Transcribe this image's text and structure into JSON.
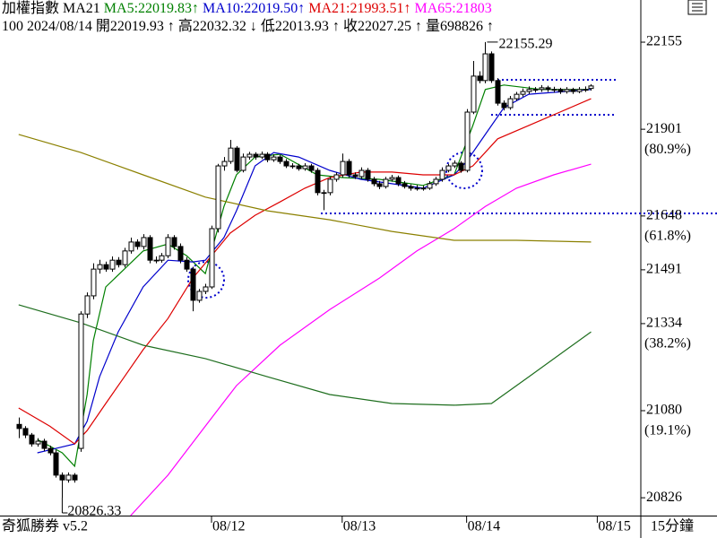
{
  "chart_data": {
    "type": "candlestick",
    "title": "加權指數",
    "indicator": "MA21",
    "info": [
      "100",
      "2024/08/14",
      "開22019.93",
      "↑",
      "高22032.32",
      "↓",
      "低22013.93",
      "↑",
      "收22027.25",
      "↑",
      "量698826",
      "↑"
    ],
    "brand": "奇狐勝券 v5.2",
    "timeframe": "15分鐘",
    "xlim": [
      -3,
      100
    ],
    "ylim": [
      20774,
      22278
    ],
    "yticks": [
      22155,
      21901,
      21648,
      21491,
      21334,
      21080,
      20826
    ],
    "fib_labels": [
      {
        "value": 21901,
        "label": "(80.9%)"
      },
      {
        "value": 21648,
        "label": "(61.8%)"
      },
      {
        "value": 21334,
        "label": "(38.2%)"
      },
      {
        "value": 21080,
        "label": "(19.1%)"
      }
    ],
    "xticks": [
      {
        "value": 31,
        "label": "08/12"
      },
      {
        "value": 52,
        "label": "08/13"
      },
      {
        "value": 72,
        "label": "08/14"
      },
      {
        "value": 93,
        "label": "08/15"
      }
    ],
    "up_color": "#ffffff",
    "down_color": "#000000",
    "ohlc": [
      [
        21040,
        21060,
        21000,
        21028
      ],
      [
        21028,
        21035,
        21000,
        21009
      ],
      [
        21009,
        21015,
        20975,
        20983
      ],
      [
        20983,
        21000,
        20975,
        20991
      ],
      [
        20991,
        20998,
        20962,
        20970
      ],
      [
        20970,
        20978,
        20950,
        20957
      ],
      [
        20957,
        20965,
        20885,
        20892
      ],
      [
        20892,
        20900,
        20826.33,
        20878
      ],
      [
        20878,
        20900,
        20870,
        20892
      ],
      [
        20892,
        20898,
        20870,
        20878
      ],
      [
        20970,
        21370,
        20960,
        21362
      ],
      [
        21362,
        21425,
        21350,
        21415
      ],
      [
        21415,
        21510,
        21405,
        21493
      ],
      [
        21493,
        21520,
        21480,
        21506
      ],
      [
        21506,
        21515,
        21485,
        21493
      ],
      [
        21493,
        21530,
        21485,
        21519
      ],
      [
        21519,
        21528,
        21498,
        21506
      ],
      [
        21506,
        21555,
        21498,
        21546
      ],
      [
        21546,
        21585,
        21538,
        21572
      ],
      [
        21572,
        21580,
        21550,
        21559
      ],
      [
        21559,
        21595,
        21550,
        21585
      ],
      [
        21585,
        21592,
        21510,
        21519
      ],
      [
        21519,
        21530,
        21510,
        21519
      ],
      [
        21519,
        21540,
        21512,
        21532
      ],
      [
        21532,
        21595,
        21525,
        21585
      ],
      [
        21585,
        21592,
        21550,
        21559
      ],
      [
        21559,
        21568,
        21510,
        21519
      ],
      [
        21519,
        21528,
        21485,
        21493
      ],
      [
        21493,
        21500,
        21370,
        21402
      ],
      [
        21402,
        21435,
        21395,
        21428
      ],
      [
        21428,
        21450,
        21420,
        21441
      ],
      [
        21441,
        21620,
        21435,
        21611
      ],
      [
        21611,
        21800,
        21600,
        21794
      ],
      [
        21794,
        21820,
        21780,
        21807
      ],
      [
        21807,
        21870,
        21800,
        21846
      ],
      [
        21846,
        21852,
        21775,
        21781
      ],
      [
        21781,
        21830,
        21775,
        21820
      ],
      [
        21820,
        21835,
        21812,
        21828
      ],
      [
        21828,
        21834,
        21812,
        21820
      ],
      [
        21820,
        21836,
        21814,
        21828
      ],
      [
        21828,
        21834,
        21805,
        21812
      ],
      [
        21812,
        21828,
        21806,
        21820
      ],
      [
        21820,
        21826,
        21800,
        21807
      ],
      [
        21807,
        21814,
        21788,
        21794
      ],
      [
        21794,
        21802,
        21786,
        21794
      ],
      [
        21794,
        21800,
        21780,
        21786
      ],
      [
        21786,
        21802,
        21780,
        21794
      ],
      [
        21794,
        21800,
        21774,
        21781
      ],
      [
        21781,
        21788,
        21708,
        21716
      ],
      [
        21716,
        21724,
        21665,
        21716
      ],
      [
        21716,
        21762,
        21708,
        21755
      ],
      [
        21755,
        21775,
        21748,
        21768
      ],
      [
        21768,
        21830,
        21760,
        21807
      ],
      [
        21807,
        21814,
        21760,
        21768
      ],
      [
        21768,
        21775,
        21756,
        21763
      ],
      [
        21763,
        21790,
        21756,
        21781
      ],
      [
        21781,
        21788,
        21748,
        21755
      ],
      [
        21755,
        21762,
        21735,
        21742
      ],
      [
        21742,
        21750,
        21726,
        21734
      ],
      [
        21734,
        21762,
        21728,
        21755
      ],
      [
        21755,
        21768,
        21748,
        21760
      ],
      [
        21760,
        21766,
        21735,
        21742
      ],
      [
        21742,
        21750,
        21728,
        21734
      ],
      [
        21734,
        21740,
        21722,
        21729
      ],
      [
        21729,
        21738,
        21722,
        21729
      ],
      [
        21729,
        21736,
        21722,
        21729
      ],
      [
        21729,
        21750,
        21724,
        21742
      ],
      [
        21742,
        21762,
        21736,
        21755
      ],
      [
        21755,
        21790,
        21748,
        21781
      ],
      [
        21781,
        21800,
        21775,
        21794
      ],
      [
        21794,
        21810,
        21788,
        21802
      ],
      [
        21802,
        21808,
        21774,
        21781
      ],
      [
        21781,
        21960,
        21775,
        21951
      ],
      [
        21951,
        22100,
        21945,
        22056
      ],
      [
        22056,
        22070,
        22035,
        22043
      ],
      [
        22043,
        22155.29,
        22035,
        22121
      ],
      [
        22121,
        22128,
        22036,
        22043
      ],
      [
        22043,
        22050,
        21970,
        21977
      ],
      [
        21977,
        21985,
        21956,
        21964
      ],
      [
        21964,
        21998,
        21958,
        21990
      ],
      [
        21990,
        22010,
        21984,
        22003
      ],
      [
        22003,
        22020,
        21996,
        22011
      ],
      [
        22011,
        22026,
        22004,
        22017
      ],
      [
        22017,
        22024,
        22008,
        22017
      ],
      [
        22017,
        22030,
        22010,
        22022
      ],
      [
        22022,
        22028,
        22010,
        22017
      ],
      [
        22017,
        22025,
        22008,
        22017
      ],
      [
        22017,
        22022,
        22004,
        22011
      ],
      [
        22011,
        22024,
        22005,
        22017
      ],
      [
        22017,
        22022,
        22004,
        22011
      ],
      [
        22011,
        22024,
        22006,
        22017
      ],
      [
        22017,
        22026,
        22010,
        22017
      ],
      [
        22019.93,
        22032.32,
        22013.93,
        22027.25
      ]
    ],
    "series": [
      {
        "label": "MA5:22019.83",
        "arrow": "↑",
        "color": "#008000",
        "x": [
          3,
          7,
          9,
          11,
          12,
          14,
          17,
          20,
          24,
          27,
          30,
          33,
          35,
          38,
          42,
          48,
          52,
          58,
          65,
          70,
          73,
          75,
          78,
          84,
          92
        ],
        "values": [
          20996,
          20957,
          20918,
          21127,
          21284,
          21441,
          21493,
          21546,
          21566,
          21532,
          21480,
          21676,
          21768,
          21820,
          21828,
          21768,
          21760,
          21755,
          21737,
          21768,
          21912,
          22017,
          22030,
          22017,
          22017
        ]
      },
      {
        "label": "MA10:22019.50",
        "arrow": "↑",
        "color": "#0000cc",
        "x": [
          3,
          6,
          9,
          11,
          13,
          16,
          20,
          24,
          28,
          30,
          33,
          35,
          38,
          41,
          45,
          50,
          55,
          60,
          65,
          70,
          72,
          75,
          78,
          82,
          92
        ],
        "values": [
          20957,
          20970,
          20983,
          21049,
          21179,
          21310,
          21441,
          21519,
          21514,
          21519,
          21585,
          21663,
          21794,
          21833,
          21820,
          21781,
          21755,
          21742,
          21729,
          21768,
          21807,
          21886,
          21964,
          22003,
          22017
        ]
      },
      {
        "label": "MA21:21993.51",
        "arrow": "↑",
        "color": "#dd0000",
        "x": [
          0,
          5,
          9,
          11,
          14,
          17,
          20,
          24,
          28,
          31,
          34,
          38,
          42,
          46,
          50,
          55,
          60,
          65,
          70,
          73,
          77,
          82,
          87,
          92
        ],
        "values": [
          21088,
          21035,
          20983,
          21022,
          21101,
          21179,
          21258,
          21349,
          21467,
          21532,
          21598,
          21650,
          21689,
          21729,
          21760,
          21776,
          21776,
          21768,
          21768,
          21794,
          21873,
          21912,
          21951,
          21990
        ]
      },
      {
        "label": "MA65:21803",
        "color": "#ff00ff",
        "x": [
          18,
          24,
          30,
          35,
          42,
          50,
          58,
          64,
          70,
          75,
          80,
          86,
          92
        ],
        "values": [
          20774,
          20892,
          21035,
          21153,
          21271,
          21375,
          21467,
          21546,
          21611,
          21676,
          21729,
          21768,
          21799
        ]
      },
      {
        "color": "#8b8000",
        "x": [
          0,
          10,
          20,
          30,
          40,
          50,
          60,
          70,
          80,
          92
        ],
        "values": [
          21886,
          21833,
          21768,
          21703,
          21663,
          21637,
          21603,
          21577,
          21577,
          21572
        ]
      },
      {
        "color": "#1e6e1e",
        "x": [
          0,
          10,
          20,
          30,
          40,
          50,
          60,
          70,
          76,
          82,
          92
        ],
        "values": [
          21389,
          21336,
          21271,
          21232,
          21179,
          21127,
          21101,
          21096,
          21101,
          21179,
          21310
        ]
      }
    ],
    "annotations": [
      {
        "label": "22155.29",
        "x": 75,
        "value": 22155.29
      },
      {
        "label": "20826.33",
        "x": 7,
        "value": 20826.33
      }
    ]
  }
}
